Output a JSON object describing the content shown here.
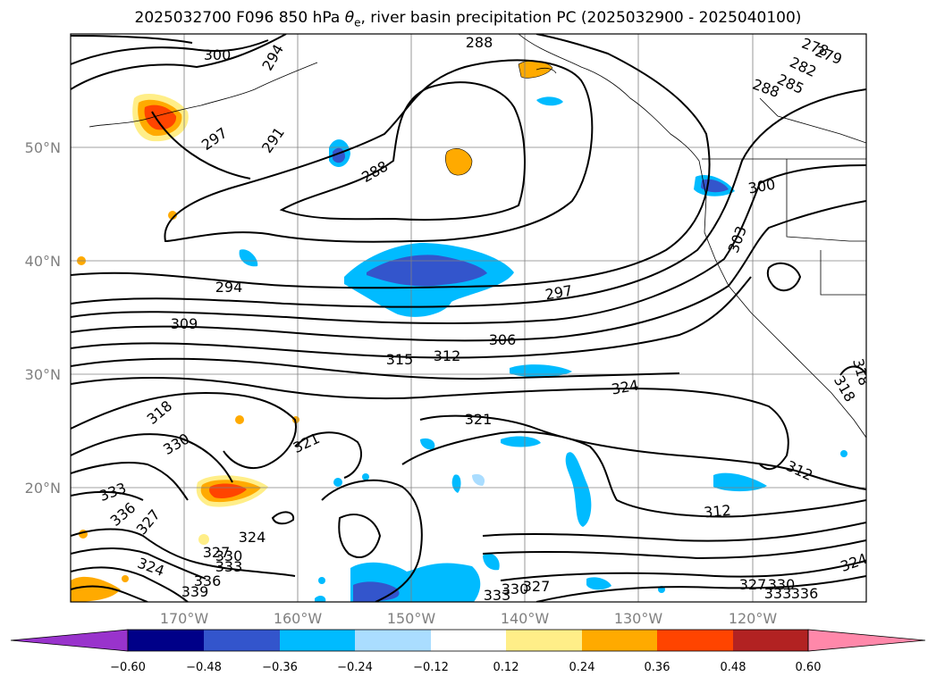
{
  "title": {
    "prefix": "2025032700 F096 850 hPa ",
    "theta": "θ",
    "sub": "e",
    "suffix": ", river basin precipitation PC (2025032900 - 2025040100)"
  },
  "map": {
    "lat_labels": [
      "50°N",
      "40°N",
      "30°N",
      "20°N"
    ],
    "lon_labels": [
      "170°W",
      "160°W",
      "150°W",
      "140°W",
      "130°W",
      "120°W"
    ],
    "contour_labels": [
      "300",
      "294",
      "288",
      "278",
      "279",
      "282",
      "285",
      "288",
      "297",
      "291",
      "288",
      "300",
      "303",
      "294",
      "297",
      "309",
      "306",
      "315",
      "312",
      "324",
      "318",
      "330",
      "321",
      "321",
      "333",
      "336",
      "327",
      "324",
      "327",
      "330",
      "333",
      "336",
      "324",
      "339",
      "333",
      "330",
      "327",
      "327",
      "330",
      "333",
      "336",
      "312",
      "312",
      "318",
      "318",
      "324"
    ],
    "colors": {
      "line": "#000000",
      "grid": "#808080",
      "border": "#000000"
    }
  },
  "colorbar": {
    "ticks": [
      "−0.60",
      "−0.48",
      "−0.36",
      "−0.24",
      "−0.12",
      "0.12",
      "0.24",
      "0.36",
      "0.48",
      "0.60"
    ],
    "colors": [
      "#9933cc",
      "#000088",
      "#3355cc",
      "#00bbff",
      "#aaddff",
      "#ffffff",
      "#ffee88",
      "#ffaa00",
      "#ff4400",
      "#b22222",
      "#ff88aa"
    ]
  }
}
